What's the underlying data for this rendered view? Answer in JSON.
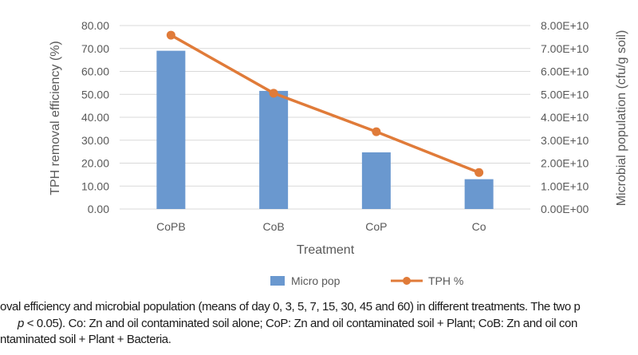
{
  "chart_data": {
    "type": "bar+line",
    "categories": [
      "CoPB",
      "CoB",
      "CoP",
      "Co"
    ],
    "series": [
      {
        "name": "Micro pop",
        "type": "bar",
        "axis": "right",
        "values": [
          69000000000.0,
          51500000000.0,
          24700000000.0,
          13000000000.0
        ],
        "color": "#6a98cf"
      },
      {
        "name": "TPH %",
        "type": "line",
        "axis": "left",
        "values": [
          75.8,
          50.5,
          33.7,
          15.9
        ],
        "color": "#e07b39"
      }
    ],
    "xlabel": "Treatment",
    "ylabel": "TPH removal efficiency (%)",
    "ylabel_right": "Microbial population (cfu/g soil)",
    "ylim": [
      0,
      80
    ],
    "ylim_right": [
      0,
      80000000000.0
    ],
    "yticks": [
      "0.00",
      "10.00",
      "20.00",
      "30.00",
      "40.00",
      "50.00",
      "60.00",
      "70.00",
      "80.00"
    ],
    "yticks_right": [
      "0.00E+00",
      "1.00E+10",
      "2.00E+10",
      "3.00E+10",
      "4.00E+10",
      "5.00E+10",
      "6.00E+10",
      "7.00E+10",
      "8.00E+10"
    ],
    "grid": true,
    "legend_position": "bottom"
  },
  "caption": {
    "line1": "oval efficiency and microbial population (means of day 0, 3, 5, 7, 15, 30, 45 and 60) in different treatments. The two p",
    "line2_p": "p",
    "line2": " < 0.05). Co: Zn and oil contaminated soil alone; CoP: Zn and oil contaminated soil + Plant; CoB: Zn and oil con",
    "line3": "ntaminated soil + Plant + Bacteria."
  }
}
